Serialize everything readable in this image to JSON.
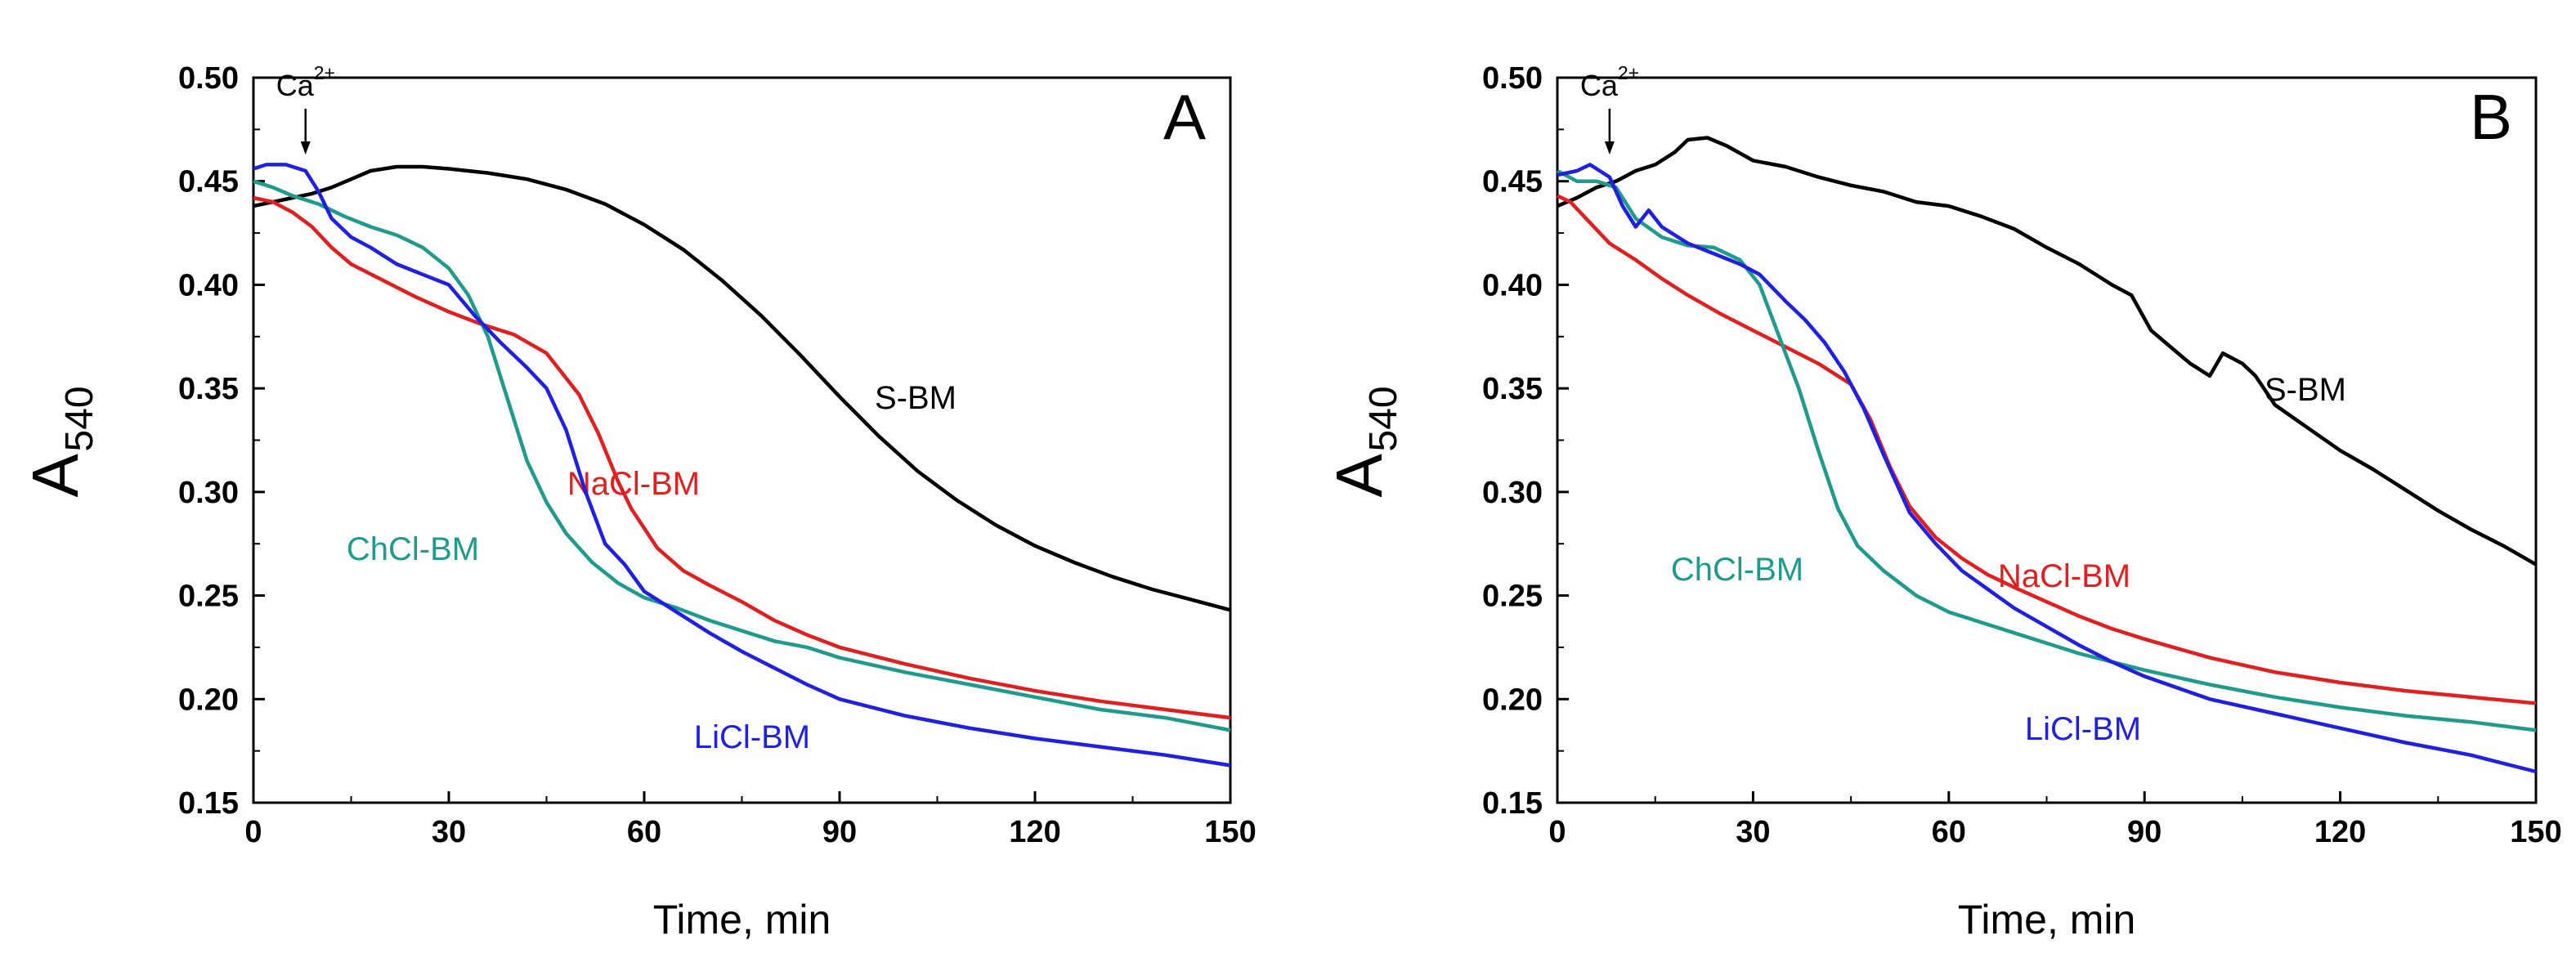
{
  "chart_data": [
    {
      "type": "line",
      "panel_label": "A",
      "xlabel": "Time, min",
      "ylabel_main": "A",
      "ylabel_sub": "540",
      "xlim": [
        0,
        150
      ],
      "ylim": [
        0.15,
        0.5
      ],
      "x_ticks": [
        "0",
        "30",
        "60",
        "90",
        "120",
        "150"
      ],
      "y_ticks": [
        "0.15",
        "0.20",
        "0.25",
        "0.30",
        "0.35",
        "0.40",
        "0.45",
        "0.50"
      ],
      "grid": false,
      "annotation": {
        "text": "Ca",
        "superscript": "2+",
        "x": 8
      },
      "series": [
        {
          "name": "S-BM",
          "color": "#000000",
          "points": [
            [
              0,
              0.438
            ],
            [
              3,
              0.44
            ],
            [
              6,
              0.442
            ],
            [
              9,
              0.444
            ],
            [
              12,
              0.447
            ],
            [
              15,
              0.451
            ],
            [
              18,
              0.455
            ],
            [
              22,
              0.457
            ],
            [
              26,
              0.457
            ],
            [
              30,
              0.456
            ],
            [
              36,
              0.454
            ],
            [
              42,
              0.451
            ],
            [
              48,
              0.446
            ],
            [
              54,
              0.439
            ],
            [
              60,
              0.429
            ],
            [
              66,
              0.417
            ],
            [
              72,
              0.402
            ],
            [
              78,
              0.385
            ],
            [
              84,
              0.366
            ],
            [
              90,
              0.346
            ],
            [
              96,
              0.327
            ],
            [
              102,
              0.31
            ],
            [
              108,
              0.296
            ],
            [
              114,
              0.284
            ],
            [
              120,
              0.274
            ],
            [
              126,
              0.266
            ],
            [
              132,
              0.259
            ],
            [
              138,
              0.253
            ],
            [
              144,
              0.248
            ],
            [
              150,
              0.243
            ]
          ]
        },
        {
          "name": "NaCl-BM",
          "color": "#e02020",
          "points": [
            [
              0,
              0.442
            ],
            [
              3,
              0.44
            ],
            [
              6,
              0.435
            ],
            [
              9,
              0.428
            ],
            [
              12,
              0.418
            ],
            [
              15,
              0.41
            ],
            [
              20,
              0.402
            ],
            [
              25,
              0.394
            ],
            [
              30,
              0.387
            ],
            [
              35,
              0.381
            ],
            [
              40,
              0.376
            ],
            [
              45,
              0.367
            ],
            [
              50,
              0.347
            ],
            [
              53,
              0.328
            ],
            [
              56,
              0.305
            ],
            [
              58,
              0.292
            ],
            [
              62,
              0.273
            ],
            [
              66,
              0.262
            ],
            [
              70,
              0.255
            ],
            [
              75,
              0.247
            ],
            [
              80,
              0.238
            ],
            [
              85,
              0.231
            ],
            [
              90,
              0.225
            ],
            [
              100,
              0.217
            ],
            [
              110,
              0.21
            ],
            [
              120,
              0.204
            ],
            [
              130,
              0.199
            ],
            [
              140,
              0.195
            ],
            [
              150,
              0.191
            ]
          ]
        },
        {
          "name": "ChCl-BM",
          "color": "#1f9a8c",
          "points": [
            [
              0,
              0.45
            ],
            [
              3,
              0.447
            ],
            [
              6,
              0.443
            ],
            [
              10,
              0.439
            ],
            [
              14,
              0.433
            ],
            [
              18,
              0.428
            ],
            [
              22,
              0.424
            ],
            [
              26,
              0.418
            ],
            [
              30,
              0.408
            ],
            [
              33,
              0.395
            ],
            [
              36,
              0.375
            ],
            [
              39,
              0.345
            ],
            [
              42,
              0.315
            ],
            [
              45,
              0.295
            ],
            [
              48,
              0.28
            ],
            [
              52,
              0.266
            ],
            [
              56,
              0.256
            ],
            [
              60,
              0.249
            ],
            [
              65,
              0.244
            ],
            [
              70,
              0.238
            ],
            [
              75,
              0.233
            ],
            [
              80,
              0.228
            ],
            [
              85,
              0.225
            ],
            [
              90,
              0.22
            ],
            [
              100,
              0.213
            ],
            [
              110,
              0.207
            ],
            [
              120,
              0.201
            ],
            [
              130,
              0.195
            ],
            [
              140,
              0.191
            ],
            [
              150,
              0.185
            ]
          ]
        },
        {
          "name": "LiCl-BM",
          "color": "#2020e0",
          "points": [
            [
              0,
              0.456
            ],
            [
              2,
              0.458
            ],
            [
              5,
              0.458
            ],
            [
              8,
              0.455
            ],
            [
              10,
              0.445
            ],
            [
              12,
              0.432
            ],
            [
              15,
              0.423
            ],
            [
              18,
              0.418
            ],
            [
              22,
              0.41
            ],
            [
              26,
              0.405
            ],
            [
              30,
              0.4
            ],
            [
              34,
              0.385
            ],
            [
              38,
              0.372
            ],
            [
              42,
              0.36
            ],
            [
              45,
              0.35
            ],
            [
              48,
              0.33
            ],
            [
              51,
              0.3
            ],
            [
              54,
              0.275
            ],
            [
              57,
              0.265
            ],
            [
              60,
              0.252
            ],
            [
              65,
              0.242
            ],
            [
              70,
              0.232
            ],
            [
              75,
              0.223
            ],
            [
              80,
              0.215
            ],
            [
              85,
              0.207
            ],
            [
              90,
              0.2
            ],
            [
              100,
              0.192
            ],
            [
              110,
              0.186
            ],
            [
              120,
              0.181
            ],
            [
              130,
              0.177
            ],
            [
              140,
              0.173
            ],
            [
              150,
              0.168
            ]
          ]
        }
      ]
    },
    {
      "type": "line",
      "panel_label": "B",
      "xlabel": "Time, min",
      "ylabel_main": "A",
      "ylabel_sub": "540",
      "xlim": [
        0,
        150
      ],
      "ylim": [
        0.15,
        0.5
      ],
      "x_ticks": [
        "0",
        "30",
        "60",
        "90",
        "120",
        "150"
      ],
      "y_ticks": [
        "0.15",
        "0.20",
        "0.25",
        "0.30",
        "0.35",
        "0.40",
        "0.45",
        "0.50"
      ],
      "grid": false,
      "annotation": {
        "text": "Ca",
        "superscript": "2+",
        "x": 8
      },
      "series": [
        {
          "name": "S-BM",
          "color": "#000000",
          "points": [
            [
              0,
              0.438
            ],
            [
              3,
              0.442
            ],
            [
              6,
              0.447
            ],
            [
              9,
              0.45
            ],
            [
              12,
              0.455
            ],
            [
              15,
              0.458
            ],
            [
              18,
              0.464
            ],
            [
              20,
              0.47
            ],
            [
              23,
              0.471
            ],
            [
              26,
              0.467
            ],
            [
              30,
              0.46
            ],
            [
              35,
              0.457
            ],
            [
              40,
              0.452
            ],
            [
              45,
              0.448
            ],
            [
              50,
              0.445
            ],
            [
              55,
              0.44
            ],
            [
              60,
              0.438
            ],
            [
              65,
              0.433
            ],
            [
              70,
              0.427
            ],
            [
              75,
              0.418
            ],
            [
              80,
              0.41
            ],
            [
              85,
              0.4
            ],
            [
              88,
              0.395
            ],
            [
              91,
              0.378
            ],
            [
              94,
              0.37
            ],
            [
              97,
              0.362
            ],
            [
              100,
              0.356
            ],
            [
              102,
              0.367
            ],
            [
              105,
              0.362
            ],
            [
              107,
              0.356
            ],
            [
              110,
              0.342
            ],
            [
              115,
              0.331
            ],
            [
              120,
              0.32
            ],
            [
              125,
              0.311
            ],
            [
              130,
              0.301
            ],
            [
              135,
              0.291
            ],
            [
              140,
              0.282
            ],
            [
              145,
              0.274
            ],
            [
              150,
              0.265
            ]
          ]
        },
        {
          "name": "NaCl-BM",
          "color": "#e02020",
          "points": [
            [
              0,
              0.443
            ],
            [
              2,
              0.44
            ],
            [
              5,
              0.43
            ],
            [
              8,
              0.42
            ],
            [
              12,
              0.412
            ],
            [
              16,
              0.403
            ],
            [
              20,
              0.395
            ],
            [
              25,
              0.386
            ],
            [
              30,
              0.378
            ],
            [
              35,
              0.37
            ],
            [
              40,
              0.362
            ],
            [
              45,
              0.352
            ],
            [
              48,
              0.335
            ],
            [
              51,
              0.312
            ],
            [
              54,
              0.293
            ],
            [
              58,
              0.278
            ],
            [
              62,
              0.268
            ],
            [
              66,
              0.26
            ],
            [
              70,
              0.254
            ],
            [
              75,
              0.247
            ],
            [
              80,
              0.24
            ],
            [
              85,
              0.234
            ],
            [
              90,
              0.229
            ],
            [
              100,
              0.22
            ],
            [
              110,
              0.213
            ],
            [
              120,
              0.208
            ],
            [
              130,
              0.204
            ],
            [
              140,
              0.201
            ],
            [
              150,
              0.198
            ]
          ]
        },
        {
          "name": "ChCl-BM",
          "color": "#1f9a8c",
          "points": [
            [
              0,
              0.455
            ],
            [
              3,
              0.45
            ],
            [
              6,
              0.45
            ],
            [
              9,
              0.447
            ],
            [
              12,
              0.432
            ],
            [
              16,
              0.423
            ],
            [
              20,
              0.419
            ],
            [
              24,
              0.418
            ],
            [
              28,
              0.412
            ],
            [
              31,
              0.4
            ],
            [
              34,
              0.375
            ],
            [
              37,
              0.35
            ],
            [
              40,
              0.32
            ],
            [
              43,
              0.292
            ],
            [
              46,
              0.274
            ],
            [
              50,
              0.262
            ],
            [
              55,
              0.25
            ],
            [
              60,
              0.242
            ],
            [
              65,
              0.237
            ],
            [
              70,
              0.232
            ],
            [
              75,
              0.227
            ],
            [
              80,
              0.222
            ],
            [
              85,
              0.218
            ],
            [
              90,
              0.214
            ],
            [
              100,
              0.207
            ],
            [
              110,
              0.201
            ],
            [
              120,
              0.196
            ],
            [
              130,
              0.192
            ],
            [
              140,
              0.189
            ],
            [
              150,
              0.185
            ]
          ]
        },
        {
          "name": "LiCl-BM",
          "color": "#2020e0",
          "points": [
            [
              0,
              0.453
            ],
            [
              3,
              0.455
            ],
            [
              5,
              0.458
            ],
            [
              8,
              0.452
            ],
            [
              10,
              0.438
            ],
            [
              12,
              0.428
            ],
            [
              14,
              0.436
            ],
            [
              16,
              0.428
            ],
            [
              20,
              0.42
            ],
            [
              24,
              0.415
            ],
            [
              28,
              0.41
            ],
            [
              31,
              0.405
            ],
            [
              35,
              0.392
            ],
            [
              38,
              0.383
            ],
            [
              41,
              0.372
            ],
            [
              44,
              0.358
            ],
            [
              47,
              0.34
            ],
            [
              50,
              0.318
            ],
            [
              54,
              0.29
            ],
            [
              58,
              0.275
            ],
            [
              62,
              0.262
            ],
            [
              66,
              0.253
            ],
            [
              70,
              0.244
            ],
            [
              75,
              0.235
            ],
            [
              80,
              0.226
            ],
            [
              85,
              0.218
            ],
            [
              90,
              0.211
            ],
            [
              100,
              0.2
            ],
            [
              110,
              0.193
            ],
            [
              120,
              0.186
            ],
            [
              130,
              0.179
            ],
            [
              140,
              0.173
            ],
            [
              150,
              0.165
            ]
          ]
        }
      ]
    }
  ]
}
